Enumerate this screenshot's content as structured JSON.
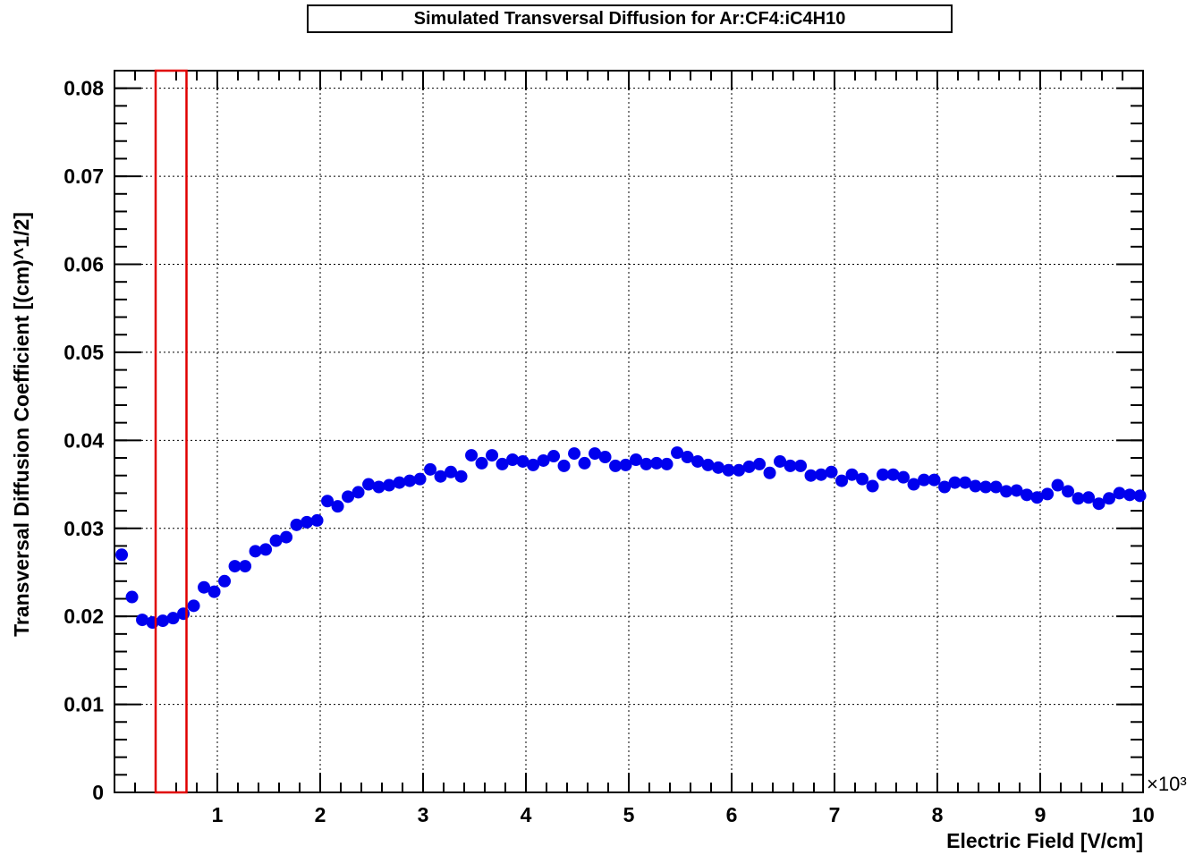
{
  "chart_data": {
    "type": "scatter",
    "title": "Simulated Transversal Diffusion for Ar:CF4:iC4H10",
    "xlabel": "Electric Field [V/cm]",
    "ylabel": "Transversal Diffusion Coefficient [(cm)^1/2]",
    "x_multiplier_label": "×10³",
    "xlim": [
      0,
      10
    ],
    "ylim": [
      0,
      0.082
    ],
    "x_ticks": [
      "1",
      "2",
      "3",
      "4",
      "5",
      "6",
      "7",
      "8",
      "9",
      "10"
    ],
    "y_ticks": [
      "0",
      "0.01",
      "0.02",
      "0.03",
      "0.04",
      "0.05",
      "0.06",
      "0.07",
      "0.08"
    ],
    "grid": true,
    "marker_color": "#0000ee",
    "highlight_color": "#e00000",
    "highlight_range_x": [
      0.4,
      0.7
    ],
    "series": [
      {
        "x": [
          0.07,
          0.17,
          0.27,
          0.37,
          0.47,
          0.57,
          0.67,
          0.77,
          0.87,
          0.97,
          1.07,
          1.17,
          1.27,
          1.37,
          1.47,
          1.57,
          1.67,
          1.77,
          1.87,
          1.97,
          2.07,
          2.17,
          2.27,
          2.37,
          2.47,
          2.57,
          2.67,
          2.77,
          2.87,
          2.97,
          3.07,
          3.17,
          3.27,
          3.37,
          3.47,
          3.57,
          3.67,
          3.77,
          3.87,
          3.97,
          4.07,
          4.17,
          4.27,
          4.37,
          4.47,
          4.57,
          4.67,
          4.77,
          4.87,
          4.97,
          5.07,
          5.17,
          5.27,
          5.37,
          5.47,
          5.57,
          5.67,
          5.77,
          5.87,
          5.97,
          6.07,
          6.17,
          6.27,
          6.37,
          6.47,
          6.57,
          6.67,
          6.77,
          6.87,
          6.97,
          7.07,
          7.17,
          7.27,
          7.37,
          7.47,
          7.57,
          7.67,
          7.77,
          7.87,
          7.97,
          8.07,
          8.17,
          8.27,
          8.37,
          8.47,
          8.57,
          8.67,
          8.77,
          8.87,
          8.97,
          9.07,
          9.17,
          9.27,
          9.37,
          9.47,
          9.57,
          9.67,
          9.77,
          9.87,
          9.97
        ],
        "y": [
          0.027,
          0.0222,
          0.0196,
          0.0193,
          0.0195,
          0.0198,
          0.0203,
          0.0212,
          0.0233,
          0.0228,
          0.024,
          0.0257,
          0.0257,
          0.0274,
          0.0276,
          0.0286,
          0.029,
          0.0304,
          0.0307,
          0.0309,
          0.0331,
          0.0325,
          0.0336,
          0.0341,
          0.035,
          0.0347,
          0.0349,
          0.0352,
          0.0354,
          0.0356,
          0.0367,
          0.0359,
          0.0364,
          0.0359,
          0.0383,
          0.0374,
          0.0383,
          0.0373,
          0.0378,
          0.0376,
          0.0372,
          0.0377,
          0.0382,
          0.0371,
          0.0385,
          0.0374,
          0.0385,
          0.0381,
          0.0371,
          0.0372,
          0.0378,
          0.0373,
          0.0374,
          0.0373,
          0.0386,
          0.0381,
          0.0376,
          0.0372,
          0.0369,
          0.0366,
          0.0366,
          0.037,
          0.0373,
          0.0363,
          0.0376,
          0.0371,
          0.0371,
          0.036,
          0.0361,
          0.0364,
          0.0354,
          0.0361,
          0.0356,
          0.0348,
          0.0361,
          0.0361,
          0.0358,
          0.035,
          0.0355,
          0.0355,
          0.0347,
          0.0352,
          0.0352,
          0.0348,
          0.0347,
          0.0347,
          0.0342,
          0.0343,
          0.0338,
          0.0335,
          0.0339,
          0.0349,
          0.0342,
          0.0334,
          0.0335,
          0.0328,
          0.0334,
          0.034,
          0.0338,
          0.0337
        ]
      }
    ]
  }
}
